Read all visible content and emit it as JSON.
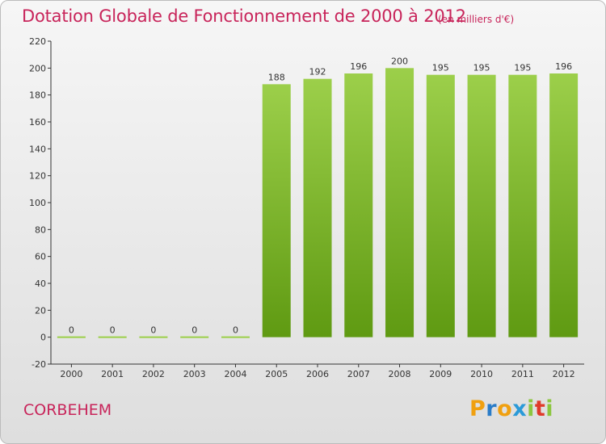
{
  "header": {
    "title": "Dotation Globale de Fonctionnement de 2000 à 2012",
    "unit_note": "(en milliers d'€)"
  },
  "footer": {
    "commune": "CORBEHEM",
    "logo_text": "Proxiti"
  },
  "colors": {
    "title": "#c8245a",
    "bar_top": "#9ccf4a",
    "bar_bottom": "#5f9a12",
    "axis": "#333333",
    "logo_p": "#f0a010",
    "logo_r": "#2a7cc8",
    "logo_o": "#f0a010",
    "logo_x": "#2a9ad8",
    "logo_i": "#8cc63f",
    "logo_t": "#e03a2a"
  },
  "chart_data": {
    "type": "bar",
    "categories": [
      "2000",
      "2001",
      "2002",
      "2003",
      "2004",
      "2005",
      "2006",
      "2007",
      "2008",
      "2009",
      "2010",
      "2011",
      "2012"
    ],
    "values": [
      0,
      0,
      0,
      0,
      0,
      188,
      192,
      196,
      200,
      195,
      195,
      195,
      196
    ],
    "value_labels": [
      "0",
      "0",
      "0",
      "0",
      "0",
      "188",
      "192",
      "196",
      "200",
      "195",
      "195",
      "195",
      "196"
    ],
    "ylim": [
      -20,
      220
    ],
    "yticks": [
      -20,
      0,
      20,
      40,
      60,
      80,
      100,
      120,
      140,
      160,
      180,
      200,
      220
    ],
    "grid": false,
    "legend": "none"
  }
}
